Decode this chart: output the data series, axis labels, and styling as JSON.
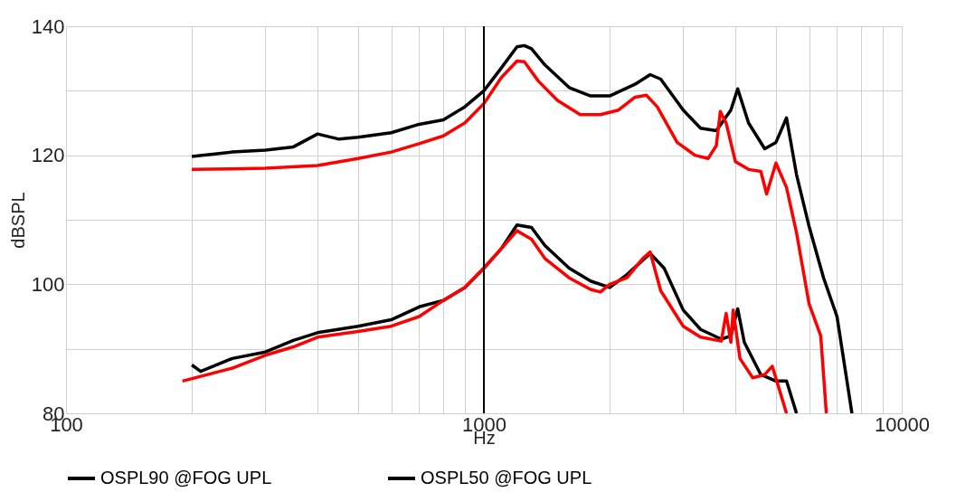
{
  "chart_data": {
    "type": "line",
    "xlabel": "Hz",
    "ylabel": "dBSPL",
    "log": "x",
    "grid": true,
    "legend": "bottom",
    "marker": "none",
    "line_style": "solid",
    "xlim": [
      100,
      10000
    ],
    "ylim": [
      80,
      140
    ],
    "xticks": [
      100,
      {
        "value": 200,
        "label": null
      },
      {
        "value": 300,
        "label": null
      },
      {
        "value": 400,
        "label": null
      },
      {
        "value": 500,
        "label": null
      },
      {
        "value": 600,
        "label": null
      },
      {
        "value": 700,
        "label": null
      },
      {
        "value": 800,
        "label": null
      },
      {
        "value": 900,
        "label": null
      },
      1000,
      {
        "value": 2000,
        "label": null
      },
      {
        "value": 3000,
        "label": null
      },
      {
        "value": 4000,
        "label": null
      },
      {
        "value": 5000,
        "label": null
      },
      {
        "value": 6000,
        "label": null
      },
      {
        "value": 7000,
        "label": null
      },
      {
        "value": 8000,
        "label": null
      },
      {
        "value": 9000,
        "label": null
      },
      10000
    ],
    "yticks": [
      80,
      {
        "value": 90,
        "label": null
      },
      100,
      {
        "value": 110,
        "label": null
      },
      120,
      {
        "value": 130,
        "label": null
      },
      140
    ],
    "ref_lines": [
      {
        "axis": "x",
        "value": 1000,
        "color": "#000000"
      }
    ],
    "series": [
      {
        "name": "OSPL90 @FOG UPL",
        "color": "#000000",
        "x": [
          200,
          250,
          300,
          350,
          400,
          450,
          500,
          600,
          700,
          800,
          900,
          1000,
          1100,
          1200,
          1250,
          1300,
          1400,
          1600,
          1800,
          2000,
          2300,
          2500,
          2650,
          3000,
          3300,
          3600,
          3900,
          4050,
          4300,
          4700,
          5000,
          5300,
          5600,
          6000,
          6500,
          7000,
          7600
        ],
        "values": [
          119.8,
          120.5,
          120.8,
          121.3,
          123.3,
          122.5,
          122.8,
          123.5,
          124.8,
          125.5,
          127.5,
          130,
          133.5,
          136.8,
          137,
          136.5,
          134,
          130.5,
          129.2,
          129.2,
          131,
          132.5,
          131.8,
          127,
          124.2,
          123.8,
          127,
          130.3,
          125,
          121,
          122,
          125.8,
          117,
          109,
          101,
          95,
          80
        ]
      },
      {
        "color": "#ff0000",
        "x": [
          200,
          250,
          300,
          400,
          500,
          600,
          700,
          800,
          900,
          1000,
          1100,
          1200,
          1250,
          1350,
          1500,
          1700,
          1900,
          2100,
          2300,
          2450,
          2600,
          2900,
          3200,
          3440,
          3600,
          3680,
          3800,
          4000,
          4300,
          4600,
          4750,
          5000,
          5300,
          5600,
          6000,
          6400,
          6600
        ],
        "values": [
          117.8,
          117.9,
          118,
          118.4,
          119.5,
          120.5,
          121.8,
          123,
          125,
          128,
          132,
          134.6,
          134.5,
          131.5,
          128.5,
          126.3,
          126.3,
          127,
          129,
          129.3,
          127.5,
          122,
          120,
          119.5,
          121.5,
          126.8,
          125,
          119,
          117.8,
          117.5,
          114,
          118.8,
          115,
          108,
          97,
          92,
          80
        ]
      },
      {
        "name": "OSPL50 @FOG UPL",
        "color": "#000000",
        "x": [
          200,
          210,
          250,
          300,
          350,
          400,
          500,
          600,
          700,
          800,
          900,
          1000,
          1100,
          1200,
          1300,
          1400,
          1600,
          1800,
          2000,
          2200,
          2500,
          2700,
          3000,
          3300,
          3700,
          3900,
          4050,
          4200,
          4600,
          5000,
          5300,
          5600
        ],
        "values": [
          87.5,
          86.5,
          88.5,
          89.5,
          91.3,
          92.5,
          93.5,
          94.5,
          96.5,
          97.5,
          99.5,
          102.5,
          105.5,
          109.2,
          108.8,
          106,
          102.5,
          100.5,
          99.5,
          101.5,
          104.8,
          102.5,
          96,
          93,
          91.5,
          92,
          96.2,
          91,
          86,
          85,
          85,
          80
        ]
      },
      {
        "color": "#ff0000",
        "x": [
          190,
          250,
          300,
          350,
          400,
          500,
          600,
          700,
          800,
          900,
          1000,
          1100,
          1200,
          1300,
          1400,
          1600,
          1800,
          1900,
          2000,
          2200,
          2400,
          2500,
          2650,
          3000,
          3300,
          3700,
          3800,
          3900,
          3950,
          4100,
          4400,
          4700,
          4900,
          5300
        ],
        "values": [
          85,
          87,
          89,
          90.3,
          91.8,
          92.7,
          93.5,
          95,
          97.5,
          99.5,
          102.5,
          105.5,
          108.3,
          107,
          104,
          101,
          99.2,
          98.8,
          100,
          101,
          104,
          105,
          99,
          93.5,
          91.8,
          91.2,
          95.5,
          91,
          96,
          88.5,
          85.5,
          86,
          87.3,
          80
        ]
      }
    ]
  }
}
